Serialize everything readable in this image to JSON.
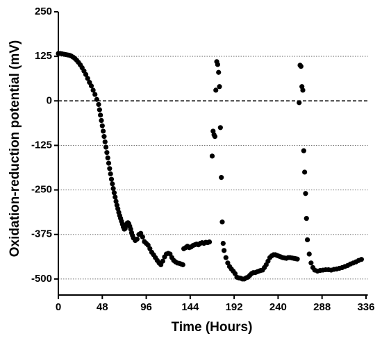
{
  "chart_data": {
    "type": "scatter",
    "x_label": "Time (Hours)",
    "y_label": "Oxidation-reduction potential (mV)",
    "xlim": [
      0,
      338
    ],
    "ylim": [
      -545,
      250
    ],
    "xticks": [
      0,
      48,
      96,
      144,
      192,
      240,
      288,
      336
    ],
    "yticks": [
      -500,
      -375,
      -250,
      -125,
      0,
      125,
      250
    ],
    "grid": true,
    "zero_line": true,
    "series": [
      {
        "color": "#000000",
        "x": [
          0,
          2,
          4,
          6,
          8,
          10,
          12,
          14,
          16,
          18,
          20,
          22,
          24,
          26,
          28,
          30,
          32,
          34,
          36,
          38,
          40,
          42,
          44,
          45,
          46,
          47,
          48,
          49,
          50,
          51,
          52,
          53,
          54,
          55,
          56,
          57,
          58,
          59,
          60,
          61,
          62,
          63,
          64,
          65,
          66,
          67,
          68,
          69,
          70,
          71,
          72,
          73,
          74,
          75,
          76,
          77,
          78,
          79,
          80,
          81,
          82,
          84,
          86,
          88,
          90,
          92,
          94,
          96,
          98,
          100,
          102,
          104,
          106,
          108,
          110,
          112,
          114,
          116,
          118,
          120,
          122,
          124,
          126,
          128,
          130,
          132,
          134,
          136,
          137,
          139,
          141,
          143,
          145,
          147,
          149,
          151,
          153,
          155,
          157,
          159,
          161,
          163,
          165,
          168,
          169,
          170,
          171,
          172,
          173,
          174,
          175,
          176,
          177,
          178,
          179,
          180,
          181,
          183,
          185,
          187,
          189,
          191,
          193,
          195,
          197,
          199,
          201,
          203,
          205,
          207,
          209,
          211,
          213,
          215,
          217,
          219,
          221,
          223,
          225,
          227,
          229,
          231,
          233,
          235,
          237,
          239,
          241,
          243,
          245,
          247,
          249,
          251,
          253,
          255,
          257,
          259,
          261,
          263,
          264,
          265,
          266,
          267,
          268,
          269,
          270,
          271,
          272,
          274,
          276,
          278,
          280,
          283,
          286,
          289,
          292,
          295,
          298,
          301,
          304,
          307,
          310,
          313,
          316,
          319,
          322,
          325,
          328,
          331
        ],
        "values": [
          133,
          133,
          132,
          131,
          130,
          129,
          128,
          126,
          123,
          119,
          114,
          108,
          101,
          93,
          84,
          74,
          63,
          52,
          42,
          30,
          18,
          4,
          -10,
          -25,
          -40,
          -55,
          -70,
          -85,
          -100,
          -115,
          -130,
          -145,
          -160,
          -175,
          -190,
          -205,
          -220,
          -233,
          -246,
          -258,
          -270,
          -282,
          -293,
          -303,
          -313,
          -322,
          -330,
          -338,
          -346,
          -354,
          -360,
          -358,
          -350,
          -344,
          -342,
          -345,
          -352,
          -360,
          -370,
          -378,
          -385,
          -392,
          -388,
          -375,
          -372,
          -382,
          -395,
          -400,
          -405,
          -415,
          -425,
          -432,
          -440,
          -448,
          -455,
          -460,
          -450,
          -438,
          -430,
          -428,
          -430,
          -440,
          -448,
          -452,
          -455,
          -456,
          -458,
          -460,
          -415,
          -412,
          -408,
          -412,
          -410,
          -406,
          -404,
          -402,
          -404,
          -400,
          -398,
          -400,
          -397,
          -398,
          -396,
          -155,
          -85,
          -95,
          -100,
          30,
          110,
          102,
          80,
          40,
          -75,
          -215,
          -340,
          -400,
          -420,
          -440,
          -455,
          -465,
          -472,
          -478,
          -485,
          -495,
          -497,
          -498,
          -500,
          -500,
          -497,
          -495,
          -490,
          -485,
          -482,
          -482,
          -480,
          -478,
          -476,
          -475,
          -468,
          -460,
          -450,
          -440,
          -435,
          -432,
          -432,
          -434,
          -436,
          -438,
          -440,
          -441,
          -442,
          -440,
          -440,
          -441,
          -442,
          -443,
          -444,
          -5,
          100,
          97,
          40,
          30,
          -140,
          -200,
          -260,
          -330,
          -390,
          -430,
          -455,
          -468,
          -475,
          -478,
          -476,
          -475,
          -474,
          -474,
          -475,
          -473,
          -472,
          -470,
          -468,
          -465,
          -462,
          -458,
          -455,
          -452,
          -448,
          -445
        ]
      }
    ]
  }
}
